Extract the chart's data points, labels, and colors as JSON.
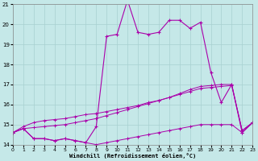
{
  "xlabel": "Windchill (Refroidissement éolien,°C)",
  "xlim": [
    0,
    23
  ],
  "ylim": [
    14,
    21
  ],
  "yticks": [
    14,
    15,
    16,
    17,
    18,
    19,
    20,
    21
  ],
  "xticks": [
    0,
    1,
    2,
    3,
    4,
    5,
    6,
    7,
    8,
    9,
    10,
    11,
    12,
    13,
    14,
    15,
    16,
    17,
    18,
    19,
    20,
    21,
    22,
    23
  ],
  "background_color": "#c5e8e8",
  "grid_color": "#a8d0d0",
  "line_color": "#aa00aa",
  "line1_x": [
    0,
    1,
    2,
    3,
    4,
    5,
    6,
    7,
    8,
    9,
    10,
    11,
    12,
    13,
    14,
    15,
    16,
    17,
    18,
    19,
    20,
    21,
    22,
    23
  ],
  "line1_y": [
    14.6,
    14.8,
    14.85,
    14.9,
    14.95,
    15.0,
    15.1,
    15.2,
    15.3,
    15.45,
    15.6,
    15.75,
    15.9,
    16.05,
    16.2,
    16.35,
    16.55,
    16.75,
    16.9,
    16.95,
    17.0,
    17.0,
    14.7,
    15.1
  ],
  "line2_x": [
    0,
    1,
    2,
    3,
    4,
    5,
    6,
    7,
    8,
    9,
    10,
    11,
    12,
    13,
    14,
    15,
    16,
    17,
    18,
    19,
    20,
    21,
    22,
    23
  ],
  "line2_y": [
    14.6,
    14.9,
    15.1,
    15.2,
    15.25,
    15.3,
    15.4,
    15.5,
    15.55,
    15.65,
    15.75,
    15.85,
    15.95,
    16.1,
    16.2,
    16.35,
    16.5,
    16.65,
    16.8,
    16.85,
    16.9,
    16.95,
    14.7,
    15.1
  ],
  "line3_x": [
    0,
    1,
    2,
    3,
    4,
    5,
    6,
    7,
    8,
    9,
    10,
    11,
    12,
    13,
    14,
    15,
    16,
    17,
    18,
    19,
    20,
    21,
    22,
    23
  ],
  "line3_y": [
    14.6,
    14.8,
    14.3,
    14.3,
    14.2,
    14.3,
    14.2,
    14.1,
    14.9,
    19.4,
    19.5,
    21.2,
    19.6,
    19.5,
    19.6,
    20.2,
    20.2,
    19.8,
    20.1,
    17.6,
    16.1,
    17.0,
    14.6,
    15.1
  ],
  "line4_x": [
    0,
    1,
    2,
    3,
    4,
    5,
    6,
    7,
    8,
    9,
    10,
    11,
    12,
    13,
    14,
    15,
    16,
    17,
    18,
    19,
    20,
    21,
    22,
    23
  ],
  "line4_y": [
    14.6,
    14.8,
    14.3,
    14.3,
    14.2,
    14.3,
    14.2,
    14.1,
    14.0,
    14.1,
    14.2,
    14.3,
    14.4,
    14.5,
    14.6,
    14.7,
    14.8,
    14.9,
    15.0,
    15.0,
    15.0,
    15.0,
    14.6,
    15.1
  ]
}
